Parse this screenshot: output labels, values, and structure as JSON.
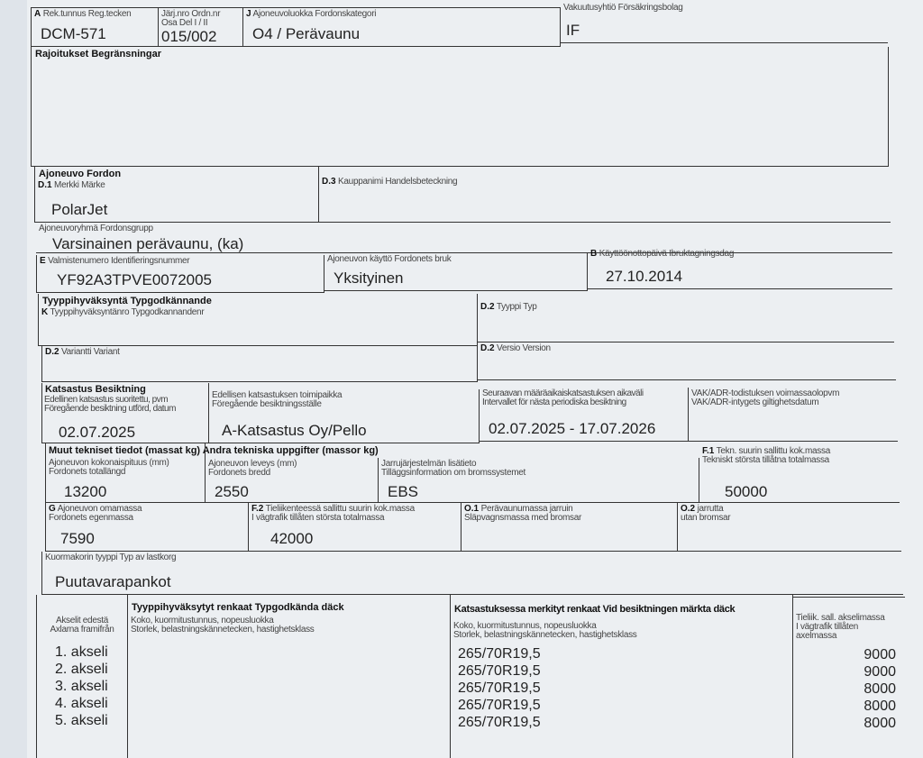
{
  "row1": {
    "reg_label": "A",
    "reg_sub": "Rek.tunnus  Reg.tecken",
    "reg_value": "DCM-571",
    "ordn_label": "Järj.nro  Ordn.nr\nOsa  Del I / II",
    "ordn_value": "015/002",
    "cat_label": "J",
    "cat_sub": "Ajoneuvoluokka  Fordonskategori",
    "cat_value": "O4 / Perävaunu",
    "ins_label": "Vakuutusyhtiö  Försäkringsbolag",
    "ins_value": "IF"
  },
  "restrictions": {
    "label": "Rajoitukset  Begränsningar"
  },
  "vehicle": {
    "heading": "Ajoneuvo  Fordon",
    "make_code": "D.1",
    "make_label": "Merkki  Märke",
    "make_value": "PolarJet",
    "trade_code": "D.3",
    "trade_label": "Kauppanimi  Handelsbeteckning",
    "group_label": "Ajoneuvoryhmä  Fordonsgrupp",
    "group_value": "Varsinainen perävaunu, (ka)",
    "vin_code": "E",
    "vin_label": "Valmistenumero  Identifieringsnummer",
    "vin_value": "YF92A3TPVE0072005",
    "use_label": "Ajoneuvon käyttö  Fordonets bruk",
    "use_value": "Yksityinen",
    "date_code": "B",
    "date_label": "Käyttöönottopäivä  Ibruktagningsdag",
    "date_value": "27.10.2014"
  },
  "type_approval": {
    "heading": "Tyyppihyväksyntä  Typgodkännande",
    "k_code": "K",
    "k_label": "Tyyppihyväksyntänro  Typgodkannandenr",
    "type_code": "D.2",
    "type_label": "Tyyppi  Typ",
    "variant_code": "D.2",
    "variant_label": "Variantti  Variant",
    "version_code": "D.2",
    "version_label": "Versio  Version"
  },
  "inspection": {
    "heading": "Katsastus  Besiktning",
    "prev_label": "Edellinen katsastus suoritettu, pvm\nFöregående besiktning utförd, datum",
    "prev_value": "02.07.2025",
    "place_label": "Edellisen katsastuksen toimipaikka\nFöregående besiktningsställe",
    "place_value": "A-Katsastus Oy/Pello",
    "next_label": "Seuraavan määräaikaiskatsastuksen aikaväli\nIntervallet för nästa periodiska besiktning",
    "next_value": "02.07.2025 - 17.07.2026",
    "adr_label": "VAK/ADR-todistuksen voimassaolopvm\nVAK/ADR-intygets giltighetsdatum"
  },
  "technical": {
    "heading": "Muut tekniset tiedot (massat kg)  Andra tekniska uppgifter (massor kg)",
    "length_label": "Ajoneuvon kokonaispituus (mm)\nFordonets totallängd",
    "length_value": "13200",
    "width_label": "Ajoneuvon leveys (mm)\nFordonets bredd",
    "width_value": "2550",
    "brake_label": "Jarrujärjestelmän lisätieto\nTilläggsinformation om bromssystemet",
    "brake_value": "EBS",
    "f1_code": "F.1",
    "f1_label": "Tekn. suurin sallittu kok.massa\nTekniskt största tillåtna totalmassa",
    "f1_value": "50000",
    "g_code": "G",
    "g_label": "Ajoneuvon omamassa\nFordonets egenmassa",
    "g_value": "7590",
    "f2_code": "F.2",
    "f2_label": "Tieliikenteessä sallittu suurin kok.massa\nI vägtrafik tillåten största totalmassa",
    "f2_value": "42000",
    "o1_code": "O.1",
    "o1_label": "Perävaunumassa jarruin\nSläpvagnsmassa med bromsar",
    "o2_code": "O.2",
    "o2_label": "jarrutta\nutan bromsar",
    "body_label": "Kuormakorin tyyppi  Typ av lastkorg",
    "body_value": "Puutavarapankot"
  },
  "tyres": {
    "axle_label": "Akselit edestä\nAxlarna framifrån",
    "approved_heading": "Tyyppihyväksytyt renkaat  Typgodkända däck",
    "approved_sub": "Koko, kuormitustunnus, nopeusluokka\nStorlek, belastningskännetecken, hastighetsklass",
    "marked_heading": "Katsastuksessa merkityt renkaat  Vid besiktningen märkta däck",
    "marked_sub": "Koko, kuormitustunnus, nopeusluokka\nStorlek, belastningskännetecken, hastighetsklass",
    "mass_label": "Tieliik. sall. akselimassa\nI vägtrafik tillåten\naxelmassa",
    "axles": [
      {
        "axle": "1. akseli",
        "tyre": "265/70R19,5",
        "mass": "9000"
      },
      {
        "axle": "2. akseli",
        "tyre": "265/70R19,5",
        "mass": "9000"
      },
      {
        "axle": "3. akseli",
        "tyre": "265/70R19,5",
        "mass": "8000"
      },
      {
        "axle": "4. akseli",
        "tyre": "265/70R19,5",
        "mass": "8000"
      },
      {
        "axle": "5. akseli",
        "tyre": "265/70R19,5",
        "mass": "8000"
      }
    ]
  }
}
